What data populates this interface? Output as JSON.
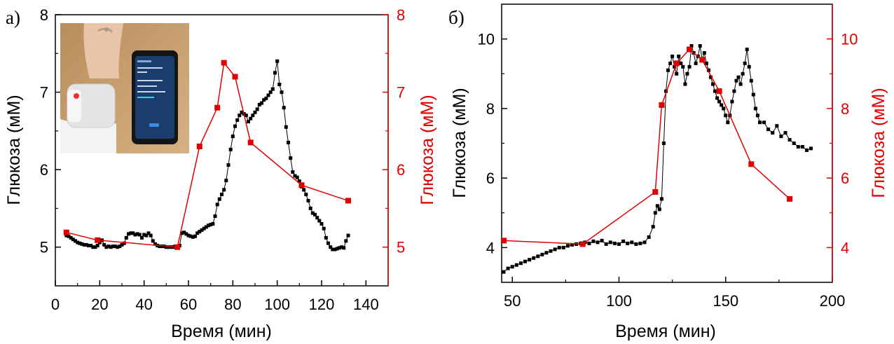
{
  "colors": {
    "black_series": "#000000",
    "red_series": "#e10000"
  },
  "inset_photo": {
    "icon": "wrist-device-and-phone-photo"
  },
  "chart_data": [
    {
      "type": "scatter",
      "panel_label": "а)",
      "xlabel": "Время (мин)",
      "ylabel_left": "Глюкоза (мМ)",
      "ylabel_right": "Глюкоза (мМ)",
      "xlim": [
        0,
        150
      ],
      "ylim_left": [
        4.5,
        8
      ],
      "ylim_right": [
        4.5,
        8
      ],
      "x_ticks": [
        0,
        20,
        40,
        60,
        80,
        100,
        120,
        140
      ],
      "y_ticks_left": [
        5,
        6,
        7,
        8
      ],
      "y_ticks_right": [
        5,
        6,
        7,
        8
      ],
      "series": [
        {
          "color": "#000000",
          "axis": "left",
          "line_width": 1,
          "marker_size": 5,
          "x": [
            5,
            6,
            7,
            8,
            9,
            10,
            11,
            12,
            13,
            14,
            15,
            16,
            17,
            18,
            19,
            20,
            21,
            22,
            23,
            24,
            25,
            26,
            27,
            28,
            29,
            30,
            31,
            32,
            33,
            34,
            35,
            36,
            37,
            38,
            39,
            40,
            41,
            42,
            43,
            44,
            45,
            46,
            47,
            48,
            49,
            50,
            51,
            52,
            53,
            54,
            55,
            56,
            57,
            58,
            59,
            60,
            61,
            62,
            63,
            64,
            65,
            66,
            67,
            68,
            69,
            70,
            71,
            72,
            73,
            74,
            75,
            76,
            77,
            78,
            79,
            80,
            81,
            82,
            83,
            84,
            85,
            86,
            87,
            88,
            89,
            90,
            91,
            92,
            93,
            94,
            95,
            96,
            97,
            98,
            99,
            100,
            101,
            102,
            103,
            104,
            105,
            106,
            107,
            108,
            109,
            110,
            111,
            112,
            113,
            114,
            115,
            116,
            117,
            118,
            119,
            120,
            121,
            122,
            123,
            124,
            125,
            126,
            127,
            128,
            129,
            130,
            131,
            132
          ],
          "y": [
            5.15,
            5.14,
            5.12,
            5.1,
            5.08,
            5.06,
            5.05,
            5.04,
            5.03,
            5.03,
            5.02,
            5.02,
            5.0,
            5.0,
            5.02,
            5.06,
            5.09,
            5.03,
            5.0,
            5.01,
            5.0,
            5.01,
            5.01,
            5.0,
            5.01,
            5.03,
            5.05,
            5.12,
            5.17,
            5.18,
            5.18,
            5.16,
            5.17,
            5.16,
            5.12,
            5.16,
            5.15,
            5.18,
            5.15,
            5.08,
            5.04,
            5.02,
            5.01,
            5.01,
            5.01,
            5.0,
            5.0,
            5.0,
            5.0,
            5.01,
            5.01,
            5.02,
            5.18,
            5.19,
            5.17,
            5.15,
            5.14,
            5.13,
            5.14,
            5.18,
            5.2,
            5.22,
            5.24,
            5.26,
            5.28,
            5.29,
            5.3,
            5.4,
            5.55,
            5.62,
            5.68,
            5.74,
            5.86,
            6.06,
            6.26,
            6.43,
            6.56,
            6.64,
            6.7,
            6.74,
            6.72,
            6.7,
            6.62,
            6.66,
            6.7,
            6.74,
            6.78,
            6.84,
            6.86,
            6.9,
            6.92,
            6.96,
            7.0,
            7.04,
            7.25,
            7.4,
            7.1,
            7.0,
            6.8,
            6.55,
            6.35,
            6.15,
            5.97,
            5.92,
            5.9,
            5.85,
            5.78,
            5.74,
            5.68,
            5.6,
            5.5,
            5.44,
            5.42,
            5.38,
            5.34,
            5.3,
            5.24,
            5.12,
            5.05,
            5.0,
            4.97,
            4.97,
            4.98,
            4.99,
            5.0,
            4.99,
            5.08,
            5.15
          ]
        },
        {
          "color": "#e10000",
          "axis": "right",
          "line_width": 1.5,
          "marker_size": 8,
          "x": [
            5,
            19,
            55,
            65,
            73,
            76,
            81,
            88,
            111,
            132
          ],
          "y": [
            5.19,
            5.09,
            5.0,
            6.3,
            6.8,
            7.38,
            7.2,
            6.35,
            5.8,
            5.6
          ]
        }
      ]
    },
    {
      "type": "scatter",
      "panel_label": "б)",
      "xlabel": "Время (мин)",
      "ylabel_left": "Глюкоза (мМ)",
      "ylabel_right": "Глюкоза (мМ)",
      "xlim": [
        45,
        200
      ],
      "ylim_left": [
        3,
        11
      ],
      "ylim_right": [
        3,
        11
      ],
      "x_ticks": [
        50,
        100,
        150,
        200
      ],
      "y_ticks_left": [
        4,
        6,
        8,
        10
      ],
      "y_ticks_right": [
        4,
        6,
        8,
        10
      ],
      "series": [
        {
          "color": "#000000",
          "axis": "left",
          "line_width": 1,
          "marker_size": 5,
          "x": [
            46,
            48,
            50,
            52,
            54,
            56,
            58,
            60,
            62,
            64,
            66,
            68,
            70,
            72,
            74,
            76,
            78,
            80,
            82,
            84,
            86,
            88,
            90,
            92,
            94,
            96,
            98,
            100,
            102,
            104,
            106,
            108,
            110,
            112,
            114,
            116,
            117,
            118,
            119,
            120,
            121,
            122,
            123,
            124,
            125,
            126,
            127,
            128,
            129,
            130,
            131,
            132,
            133,
            134,
            135,
            136,
            137,
            138,
            139,
            140,
            141,
            142,
            143,
            144,
            145,
            146,
            147,
            148,
            149,
            150,
            151,
            152,
            153,
            154,
            155,
            156,
            157,
            158,
            159,
            160,
            161,
            162,
            163,
            164,
            165,
            166,
            168,
            170,
            172,
            174,
            176,
            178,
            180,
            182,
            184,
            186,
            188,
            190
          ],
          "y": [
            3.3,
            3.4,
            3.45,
            3.5,
            3.55,
            3.6,
            3.65,
            3.7,
            3.75,
            3.8,
            3.85,
            3.9,
            3.95,
            4.0,
            4.0,
            4.05,
            4.08,
            4.1,
            4.12,
            4.15,
            4.12,
            4.18,
            4.15,
            4.2,
            4.1,
            4.15,
            4.12,
            4.1,
            4.18,
            4.12,
            4.15,
            4.1,
            4.12,
            4.15,
            4.3,
            4.6,
            5.0,
            5.2,
            5.1,
            5.4,
            7.0,
            8.5,
            9.1,
            9.3,
            9.5,
            9.2,
            9.0,
            9.5,
            9.3,
            9.2,
            8.7,
            9.0,
            9.2,
            9.8,
            9.6,
            9.3,
            9.5,
            9.8,
            9.4,
            9.6,
            9.3,
            9.1,
            8.9,
            8.7,
            8.5,
            8.3,
            8.2,
            8.1,
            8.0,
            7.8,
            7.6,
            7.8,
            8.2,
            8.5,
            8.8,
            8.9,
            8.7,
            9.0,
            9.3,
            9.7,
            9.2,
            8.8,
            8.4,
            8.0,
            7.8,
            7.6,
            7.6,
            7.4,
            7.3,
            7.5,
            7.2,
            7.3,
            7.1,
            7.0,
            6.9,
            6.9,
            6.8,
            6.85
          ]
        },
        {
          "color": "#e10000",
          "axis": "right",
          "line_width": 1.5,
          "marker_size": 8,
          "x": [
            46,
            83,
            117,
            120,
            127,
            133,
            139,
            147,
            162,
            180
          ],
          "y": [
            4.2,
            4.1,
            5.6,
            8.1,
            9.3,
            9.7,
            9.4,
            8.5,
            6.4,
            5.4
          ]
        }
      ]
    }
  ]
}
